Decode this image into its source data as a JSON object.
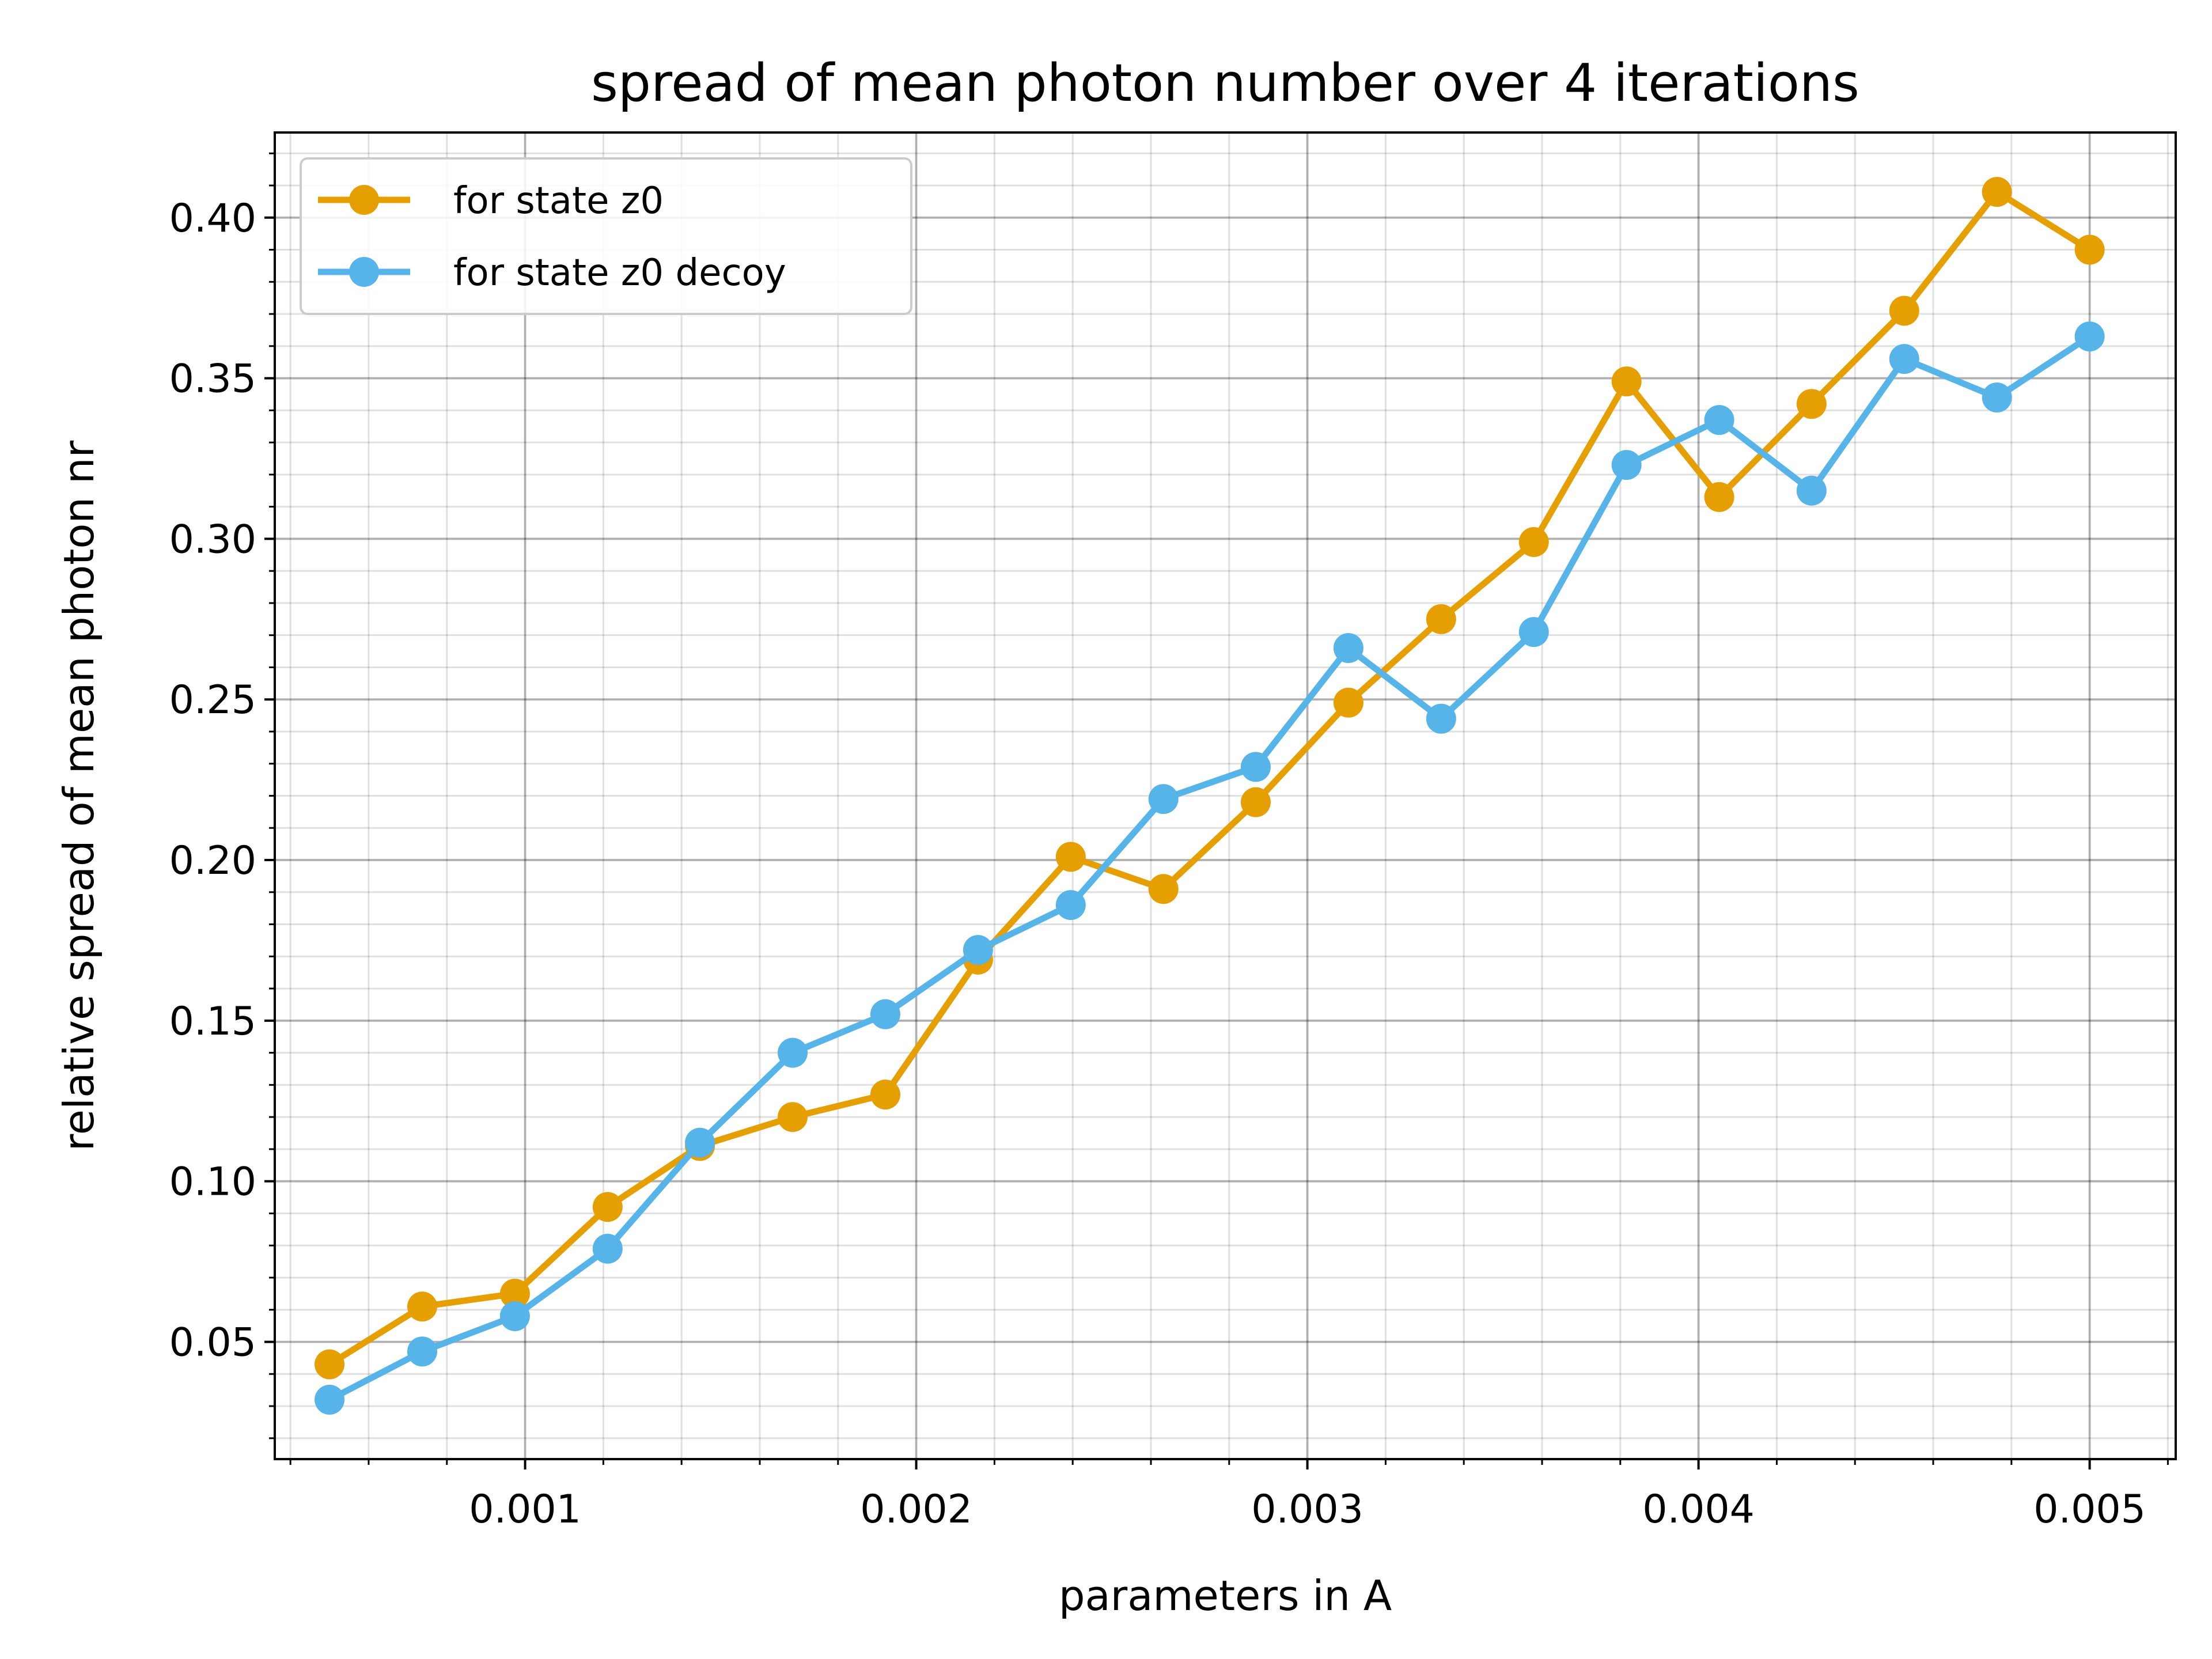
{
  "chart_data": {
    "type": "line",
    "title": "spread of mean photon number over 4 iterations",
    "xlabel": "parameters in A",
    "ylabel": "relative spread of mean photon nr",
    "xlim": [
      0.00036,
      0.00522
    ],
    "ylim": [
      0.0135,
      0.4265
    ],
    "xticks": [
      0.001,
      0.002,
      0.003,
      0.004,
      0.005
    ],
    "xtick_labels": [
      "0.001",
      "0.002",
      "0.003",
      "0.004",
      "0.005"
    ],
    "yticks": [
      0.05,
      0.1,
      0.15,
      0.2,
      0.25,
      0.3,
      0.35,
      0.4
    ],
    "ytick_labels": [
      "0.05",
      "0.10",
      "0.15",
      "0.20",
      "0.25",
      "0.30",
      "0.35",
      "0.40"
    ],
    "grid": true,
    "minor_grid": true,
    "legend_position": "top-left",
    "x": [
      0.0005,
      0.000737,
      0.000974,
      0.001211,
      0.001447,
      0.001684,
      0.001921,
      0.002158,
      0.002395,
      0.002632,
      0.002868,
      0.003105,
      0.003342,
      0.003579,
      0.003816,
      0.004053,
      0.004289,
      0.004526,
      0.004763,
      0.005
    ],
    "series": [
      {
        "name": "for state z0",
        "color": "#E69F00",
        "values": [
          0.043,
          0.061,
          0.065,
          0.092,
          0.111,
          0.12,
          0.127,
          0.169,
          0.201,
          0.191,
          0.218,
          0.249,
          0.275,
          0.299,
          0.349,
          0.313,
          0.342,
          0.371,
          0.408,
          0.39
        ]
      },
      {
        "name": "for state z0 decoy",
        "color": "#56B4E9",
        "values": [
          0.032,
          0.047,
          0.058,
          0.079,
          0.112,
          0.14,
          0.152,
          0.172,
          0.186,
          0.219,
          0.229,
          0.266,
          0.244,
          0.271,
          0.323,
          0.337,
          0.315,
          0.356,
          0.344,
          0.363
        ]
      }
    ]
  }
}
